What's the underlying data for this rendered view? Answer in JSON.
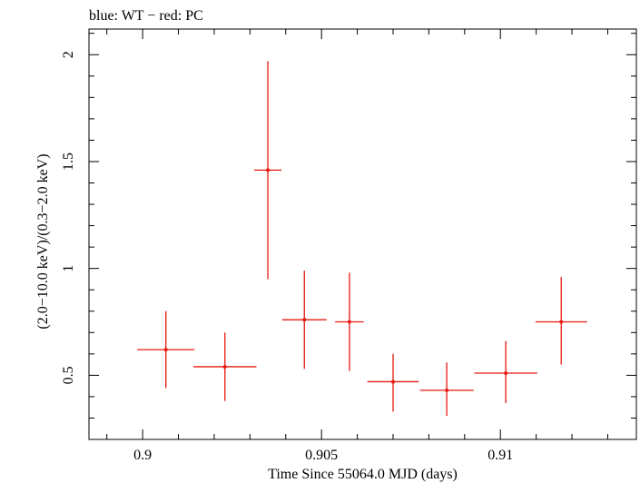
{
  "chart_data": {
    "type": "scatter",
    "title": "blue: WT − red: PC",
    "xlabel": "Time Since 55064.0 MJD (days)",
    "ylabel": "(2.0−10.0 keV)/(0.3−2.0 keV)",
    "xlim": [
      0.8985,
      0.9138
    ],
    "ylim": [
      0.2,
      2.12
    ],
    "x_ticks": [
      0.9,
      0.905,
      0.91
    ],
    "x_tick_labels": [
      "0.9",
      "0.905",
      "0.91"
    ],
    "y_ticks": [
      0.5,
      1,
      1.5,
      2
    ],
    "y_tick_labels": [
      "0.5",
      "1",
      "1.5",
      "2"
    ],
    "grid": false,
    "series": [
      {
        "color": "#e8190f",
        "points": [
          {
            "x": 0.90065,
            "xerr": 0.0008,
            "y": 0.62,
            "ylo": 0.44,
            "yhi": 0.8
          },
          {
            "x": 0.9023,
            "xerr": 0.00088,
            "y": 0.54,
            "ylo": 0.38,
            "yhi": 0.7
          },
          {
            "x": 0.9035,
            "xerr": 0.00038,
            "y": 1.46,
            "ylo": 0.95,
            "yhi": 1.97
          },
          {
            "x": 0.90452,
            "xerr": 0.00062,
            "y": 0.76,
            "ylo": 0.53,
            "yhi": 0.99
          },
          {
            "x": 0.90578,
            "xerr": 0.0004,
            "y": 0.75,
            "ylo": 0.52,
            "yhi": 0.98
          },
          {
            "x": 0.907,
            "xerr": 0.00072,
            "y": 0.47,
            "ylo": 0.33,
            "yhi": 0.6
          },
          {
            "x": 0.9085,
            "xerr": 0.00075,
            "y": 0.43,
            "ylo": 0.31,
            "yhi": 0.56
          },
          {
            "x": 0.91015,
            "xerr": 0.00088,
            "y": 0.51,
            "ylo": 0.37,
            "yhi": 0.66
          },
          {
            "x": 0.9117,
            "xerr": 0.00072,
            "y": 0.75,
            "ylo": 0.55,
            "yhi": 0.96
          }
        ]
      }
    ]
  }
}
